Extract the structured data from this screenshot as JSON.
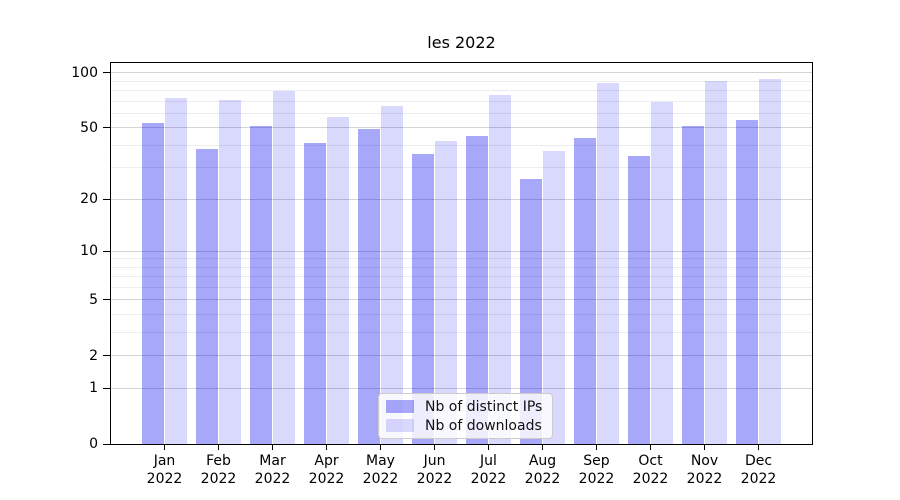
{
  "chart_data": {
    "type": "bar",
    "title": "les 2022",
    "x": {
      "months": [
        "Jan",
        "Feb",
        "Mar",
        "Apr",
        "May",
        "Jun",
        "Jul",
        "Aug",
        "Sep",
        "Oct",
        "Nov",
        "Dec"
      ],
      "year": "2022"
    },
    "series": [
      {
        "name": "Nb of distinct IPs",
        "color": "rgba(0,0,240,0.34)",
        "values": [
          53,
          38,
          51,
          41,
          49,
          36,
          45,
          26,
          44,
          35,
          51,
          55
        ]
      },
      {
        "name": "Nb of downloads",
        "color": "rgba(0,0,240,0.15)",
        "values": [
          73,
          71,
          80,
          57,
          66,
          42,
          76,
          37,
          88,
          69,
          90,
          93
        ]
      }
    ],
    "yscale": "log1p",
    "ylim": [
      0,
      113
    ],
    "y_major_ticks": [
      100,
      50,
      20,
      10,
      5,
      2,
      1,
      0
    ],
    "y_minor_ticks": [
      3,
      4,
      6,
      7,
      8,
      9,
      30,
      40,
      60,
      70,
      80,
      90
    ],
    "grid": true,
    "legend_position": "lower center",
    "colors": {
      "major_grid": "#d4d4d4",
      "minor_grid": "#ececec",
      "axis": "#000000",
      "text": "#000000"
    }
  }
}
